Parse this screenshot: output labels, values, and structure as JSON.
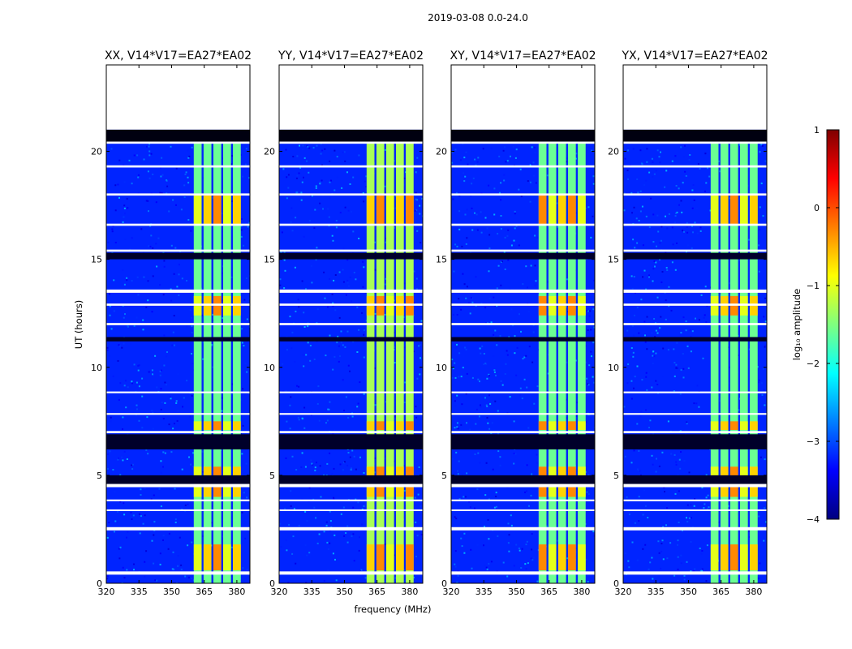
{
  "figure": {
    "suptitle": "2019-03-08 0.0-24.0",
    "xlabel": "frequency (MHz)",
    "ylabel": "UT (hours)",
    "colorbar_label": "log₁₀ amplitude"
  },
  "chart_data": {
    "type": "heatmap",
    "title": "2019-03-08 0.0-24.0",
    "xlabel": "frequency (MHz)",
    "ylabel": "UT (hours)",
    "xlim": [
      320,
      386
    ],
    "ylim": [
      0,
      24
    ],
    "xticks": [
      320,
      335,
      350,
      365,
      380
    ],
    "yticks": [
      0,
      5,
      10,
      15,
      20
    ],
    "colorbar": {
      "label": "log10 amplitude",
      "range": [
        -4,
        1
      ],
      "ticks": [
        1,
        0,
        -1,
        -2,
        -3,
        -4
      ],
      "colormap": "jet",
      "colors": [
        "#00007f",
        "#0000ff",
        "#007fff",
        "#00ffff",
        "#7fff7f",
        "#ffff00",
        "#ff7f00",
        "#ff0000",
        "#7f0000"
      ]
    },
    "panels": [
      {
        "title": "XX, V14*V17=EA27*EA02",
        "band_lo": 361,
        "band_hi": 381
      },
      {
        "title": "YY, V14*V17=EA27*EA02",
        "band_lo": 361,
        "band_hi": 381
      },
      {
        "title": "XY, V14*V17=EA27*EA02",
        "band_lo": 361,
        "band_hi": 381
      },
      {
        "title": "YX, V14*V17=EA27*EA02",
        "band_lo": 361,
        "band_hi": 381
      }
    ],
    "data_end_ut": 21,
    "background_level": -3.2,
    "band_level": -1.6,
    "band_columns_mhz": [
      362,
      366.5,
      371,
      375.5,
      380
    ],
    "flag_bands_ut": [
      [
        0.4,
        0.55
      ],
      [
        2.45,
        2.6
      ],
      [
        3.35,
        3.42
      ],
      [
        3.8,
        3.88
      ],
      [
        4.45,
        4.6
      ],
      [
        6.95,
        7.05
      ],
      [
        7.8,
        7.88
      ],
      [
        8.8,
        8.88
      ],
      [
        11.95,
        12.05
      ],
      [
        12.85,
        12.95
      ],
      [
        13.45,
        13.6
      ],
      [
        15.35,
        15.45
      ],
      [
        16.55,
        16.65
      ],
      [
        17.95,
        18.05
      ],
      [
        19.25,
        19.35
      ],
      [
        20.35,
        20.45
      ]
    ],
    "hot_segments_ut": [
      [
        0.6,
        1.8
      ],
      [
        4.0,
        5.4
      ],
      [
        7.1,
        7.5
      ],
      [
        12.4,
        13.3
      ],
      [
        16.6,
        18.0
      ]
    ]
  }
}
